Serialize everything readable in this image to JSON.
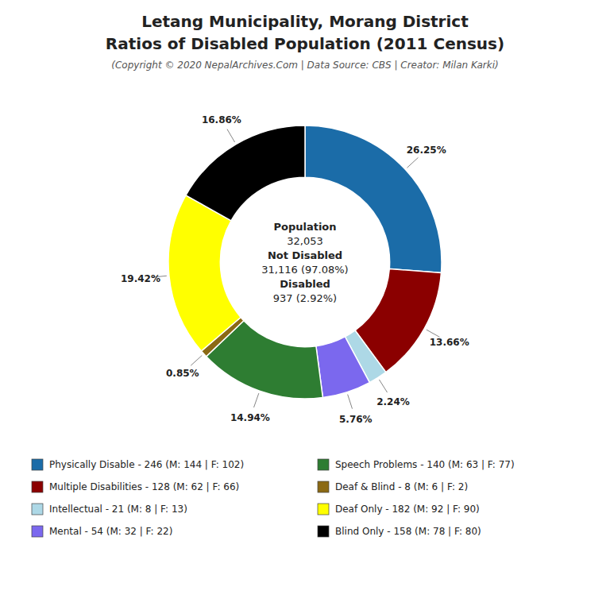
{
  "chart_data": {
    "type": "donut",
    "title": [
      "Letang Municipality, Morang District",
      "Ratios of Disabled Population (2011 Census)"
    ],
    "subtitle": "(Copyright © 2020 NepalArchives.Com | Data Source: CBS | Creator: Milan Karki)",
    "categories": [
      "Physically Disable - 246 (M: 144 | F: 102)",
      "Multiple Disabilities - 128 (M: 62 | F: 66)",
      "Intellectual - 21 (M: 8 | F: 13)",
      "Mental - 54 (M: 32 | F: 22)",
      "Speech Problems - 140 (M: 63 | F: 77)",
      "Deaf & Blind - 8 (M: 6 | F: 2)",
      "Deaf Only - 182 (M: 92 | F: 90)",
      "Blind Only - 158 (M: 78 | F: 80)"
    ],
    "values": [
      26.25,
      13.66,
      2.24,
      5.76,
      14.94,
      0.85,
      19.42,
      16.86
    ],
    "value_labels": [
      "26.25%",
      "13.66%",
      "2.24%",
      "5.76%",
      "14.94%",
      "0.85%",
      "19.42%",
      "16.86%"
    ],
    "colors": [
      "#1B6CA8",
      "#8B0000",
      "#ADD8E6",
      "#7B68EE",
      "#2E7D32",
      "#8B6914",
      "#FFFF00",
      "#000000"
    ],
    "annotations": [
      "Population",
      "32,053",
      "Not Disabled",
      "31,116 (97.08%)",
      "Disabled",
      "937 (2.92%)"
    ],
    "data_labels": true,
    "legend": "bottom"
  }
}
